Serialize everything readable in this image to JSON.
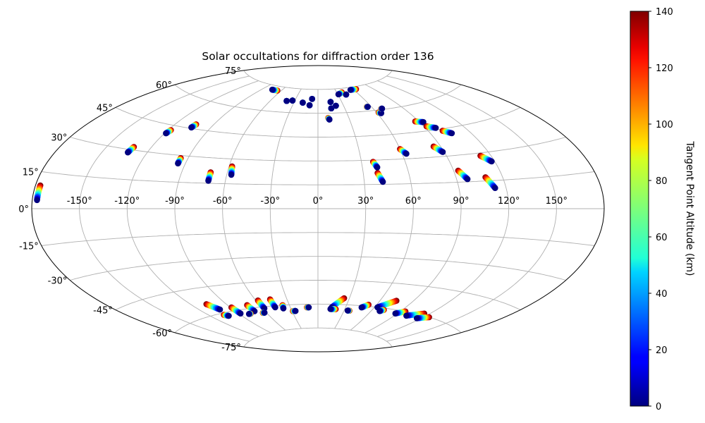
{
  "chart_data": {
    "type": "scatter",
    "projection": "aitoff",
    "title": "Solar occultations for diffraction order 136",
    "lon_ticks": [
      "-150°",
      "-120°",
      "-90°",
      "-60°",
      "-30°",
      "0°",
      "30°",
      "60°",
      "90°",
      "120°",
      "150°"
    ],
    "lon_tick_values": [
      -150,
      -120,
      -90,
      -60,
      -30,
      0,
      30,
      60,
      90,
      120,
      150
    ],
    "lat_ticks": [
      "75°",
      "60°",
      "45°",
      "30°",
      "15°",
      "0°",
      "-15°",
      "-30°",
      "-45°",
      "-60°",
      "-75°"
    ],
    "lat_tick_values": [
      75,
      60,
      45,
      30,
      15,
      0,
      -15,
      -30,
      -45,
      -60,
      -75
    ],
    "grid": true,
    "colorbar": {
      "label": "Tangent Point Altitude (km)",
      "range": [
        0,
        140
      ],
      "ticks": [
        "0",
        "20",
        "40",
        "60",
        "80",
        "100",
        "120",
        "140"
      ],
      "tick_values": [
        0,
        20,
        40,
        60,
        80,
        100,
        120,
        140
      ],
      "colormap": "jet"
    },
    "occultation_tracks": [
      {
        "lon_start": -177,
        "lat_start": 9.5,
        "lon_end": -177,
        "lat_end": 3.5
      },
      {
        "lon_start": -132,
        "lat_start": 31.5,
        "lon_end": -133,
        "lat_end": 28.5
      },
      {
        "lon_start": -118,
        "lat_start": 42.5,
        "lon_end": -119,
        "lat_end": 40.5
      },
      {
        "lon_start": -104,
        "lat_start": 47.5,
        "lon_end": -105,
        "lat_end": 45.5
      },
      {
        "lon_start": -95,
        "lat_start": 28.5,
        "lon_end": -95,
        "lat_end": 25.5
      },
      {
        "lon_start": -71,
        "lat_start": 21.5,
        "lon_end": -71,
        "lat_end": 16.5
      },
      {
        "lon_start": -58,
        "lat_start": 25.5,
        "lon_end": -57,
        "lat_end": 20.5
      },
      {
        "lon_start": -66,
        "lat_start": 72.5,
        "lon_end": -75,
        "lat_end": 72.5
      },
      {
        "lon_start": -40,
        "lat_start": 67,
        "lon_end": -40,
        "lat_end": 67
      },
      {
        "lon_start": -33,
        "lat_start": 67.5,
        "lon_end": -33,
        "lat_end": 67.5
      },
      {
        "lon_start": -19,
        "lat_start": 66.5,
        "lon_end": -19,
        "lat_end": 66.5
      },
      {
        "lon_start": -10,
        "lat_start": 65,
        "lon_end": -10,
        "lat_end": 65
      },
      {
        "lon_start": -8,
        "lat_start": 69,
        "lon_end": -8,
        "lat_end": 69
      },
      {
        "lon_start": 10,
        "lat_start": 57,
        "lon_end": 11,
        "lat_end": 56
      },
      {
        "lon_start": 15,
        "lat_start": 63,
        "lon_end": 15,
        "lat_end": 63
      },
      {
        "lon_start": 16,
        "lat_start": 67,
        "lon_end": 16,
        "lat_end": 67
      },
      {
        "lon_start": 21,
        "lat_start": 64.5,
        "lon_end": 21,
        "lat_end": 64.5
      },
      {
        "lon_start": 38,
        "lat_start": 72.5,
        "lon_end": 31,
        "lat_end": 71.5
      },
      {
        "lon_start": 42,
        "lat_start": 71,
        "lon_end": 42,
        "lat_end": 71
      },
      {
        "lon_start": 65,
        "lat_start": 73.5,
        "lon_end": 55,
        "lat_end": 73.5
      },
      {
        "lon_start": 55,
        "lat_start": 62.5,
        "lon_end": 56,
        "lat_end": 62.5
      },
      {
        "lon_start": 62,
        "lat_start": 58.5,
        "lon_end": 64,
        "lat_end": 58
      },
      {
        "lon_start": 68,
        "lat_start": 60.5,
        "lon_end": 69,
        "lat_end": 60.5
      },
      {
        "lon_start": 87,
        "lat_start": 51,
        "lon_end": 93,
        "lat_end": 50
      },
      {
        "lon_start": 92,
        "lat_start": 47.5,
        "lon_end": 98,
        "lat_end": 46
      },
      {
        "lon_start": 101,
        "lat_start": 44,
        "lon_end": 106,
        "lat_end": 42
      },
      {
        "lon_start": 60,
        "lat_start": 36,
        "lon_end": 63,
        "lat_end": 33
      },
      {
        "lon_start": 85,
        "lat_start": 36,
        "lon_end": 89,
        "lat_end": 32.5
      },
      {
        "lon_start": 38,
        "lat_start": 29,
        "lon_end": 40,
        "lat_end": 25.5
      },
      {
        "lon_start": 39.5,
        "lat_start": 22,
        "lon_end": 42,
        "lat_end": 16.5
      },
      {
        "lon_start": 93,
        "lat_start": 21.5,
        "lon_end": 97,
        "lat_end": 16.5
      },
      {
        "lon_start": 109,
        "lat_start": 17,
        "lon_end": 113,
        "lat_end": 11
      },
      {
        "lon_start": 113,
        "lat_start": 28.5,
        "lon_end": 118,
        "lat_end": 25
      },
      {
        "lon_start": -107,
        "lat_start": -54,
        "lon_end": -102,
        "lat_end": -58
      },
      {
        "lon_start": -89,
        "lat_start": -58,
        "lon_end": -88,
        "lat_end": -62
      },
      {
        "lon_start": -72,
        "lat_start": -58,
        "lon_end": -71,
        "lat_end": -62
      },
      {
        "lon_start": -58,
        "lat_start": -56,
        "lon_end": -58,
        "lat_end": -61
      },
      {
        "lon_start": -46,
        "lat_start": -56,
        "lon_end": -46,
        "lat_end": -61
      },
      {
        "lon_start": -37,
        "lat_start": -60,
        "lon_end": -38,
        "lat_end": -62
      },
      {
        "lon_start": -29,
        "lat_start": -64,
        "lon_end": -26,
        "lat_end": -64
      },
      {
        "lon_start": -12,
        "lat_start": -62,
        "lon_end": -10,
        "lat_end": -62
      },
      {
        "lon_start": 25,
        "lat_start": -56,
        "lon_end": 15,
        "lat_end": -62
      },
      {
        "lon_start": 20,
        "lat_start": -63,
        "lon_end": 14,
        "lat_end": -63
      },
      {
        "lon_start": 36,
        "lat_start": -63.5,
        "lon_end": 34,
        "lat_end": -63.5
      },
      {
        "lon_start": 52,
        "lat_start": -59,
        "lon_end": 47,
        "lat_end": -61
      },
      {
        "lon_start": 75,
        "lat_start": -55,
        "lon_end": 63,
        "lat_end": -60
      },
      {
        "lon_start": 72,
        "lat_start": -61,
        "lon_end": 69,
        "lat_end": -62
      },
      {
        "lon_start": 95,
        "lat_start": -60,
        "lon_end": 88,
        "lat_end": -62
      },
      {
        "lon_start": 115,
        "lat_start": -59,
        "lon_end": 102,
        "lat_end": -62
      },
      {
        "lon_start": 125,
        "lat_start": -60,
        "lon_end": 116,
        "lat_end": -62
      },
      {
        "lon_start": -106,
        "lat_start": -61,
        "lon_end": -103,
        "lat_end": -62
      },
      {
        "lon_start": -78,
        "lat_start": -63,
        "lon_end": -80,
        "lat_end": -63
      },
      {
        "lon_start": -64,
        "lat_start": -63.5,
        "lon_end": -62,
        "lat_end": -63.5
      }
    ]
  }
}
